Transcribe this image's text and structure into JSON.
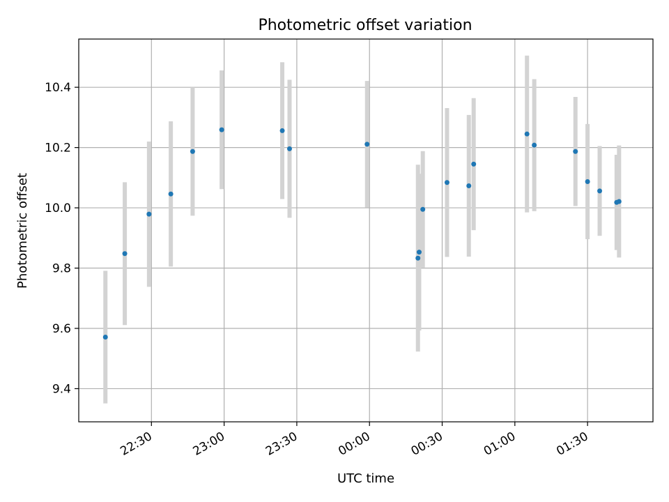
{
  "chart_data": {
    "type": "scatter",
    "title": "Photometric offset variation",
    "xlabel": "UTC time",
    "ylabel": "Photometric offset",
    "x_tick_labels": [
      "22:30",
      "23:00",
      "23:30",
      "00:00",
      "00:30",
      "01:00",
      "01:30"
    ],
    "y_tick_labels": [
      "9.4",
      "9.6",
      "9.8",
      "10.0",
      "10.2",
      "10.4"
    ],
    "y_ticks": [
      9.4,
      9.6,
      9.8,
      10.0,
      10.2,
      10.4
    ],
    "ylim": [
      9.29,
      10.56
    ],
    "xlim": [
      "2000-01-01T22:00:00",
      "2000-01-02T01:57:00"
    ],
    "grid": true,
    "marker_color": "#1f77b4",
    "errorbar_color": "#d3d3d3",
    "points": [
      {
        "time": "2000-01-01T22:11:00",
        "y": 9.571,
        "yerr": 0.22
      },
      {
        "time": "2000-01-01T22:19:00",
        "y": 9.848,
        "yerr": 0.237
      },
      {
        "time": "2000-01-01T22:29:00",
        "y": 9.979,
        "yerr": 0.241
      },
      {
        "time": "2000-01-01T22:38:00",
        "y": 10.046,
        "yerr": 0.241
      },
      {
        "time": "2000-01-01T22:47:00",
        "y": 10.187,
        "yerr": 0.213
      },
      {
        "time": "2000-01-01T22:59:00",
        "y": 10.259,
        "yerr": 0.197
      },
      {
        "time": "2000-01-01T23:24:00",
        "y": 10.256,
        "yerr": 0.227
      },
      {
        "time": "2000-01-01T23:27:00",
        "y": 10.196,
        "yerr": 0.229
      },
      {
        "time": "2000-01-01T23:59:00",
        "y": 10.211,
        "yerr": 0.21
      },
      {
        "time": "2000-01-02T00:20:00",
        "y": 9.833,
        "yerr": 0.31
      },
      {
        "time": "2000-01-02T00:20:30",
        "y": 9.853,
        "yerr": 0.26
      },
      {
        "time": "2000-01-02T00:22:00",
        "y": 9.995,
        "yerr": 0.193
      },
      {
        "time": "2000-01-02T00:32:00",
        "y": 10.084,
        "yerr": 0.247
      },
      {
        "time": "2000-01-02T00:41:00",
        "y": 10.073,
        "yerr": 0.235
      },
      {
        "time": "2000-01-02T00:43:00",
        "y": 10.145,
        "yerr": 0.219
      },
      {
        "time": "2000-01-02T01:05:00",
        "y": 10.245,
        "yerr": 0.26
      },
      {
        "time": "2000-01-02T01:08:00",
        "y": 10.208,
        "yerr": 0.219
      },
      {
        "time": "2000-01-02T01:25:00",
        "y": 10.187,
        "yerr": 0.181
      },
      {
        "time": "2000-01-02T01:30:00",
        "y": 10.087,
        "yerr": 0.191
      },
      {
        "time": "2000-01-02T01:35:00",
        "y": 10.056,
        "yerr": 0.149
      },
      {
        "time": "2000-01-02T01:42:00",
        "y": 10.018,
        "yerr": 0.158
      },
      {
        "time": "2000-01-02T01:43:00",
        "y": 10.021,
        "yerr": 0.186
      }
    ]
  }
}
